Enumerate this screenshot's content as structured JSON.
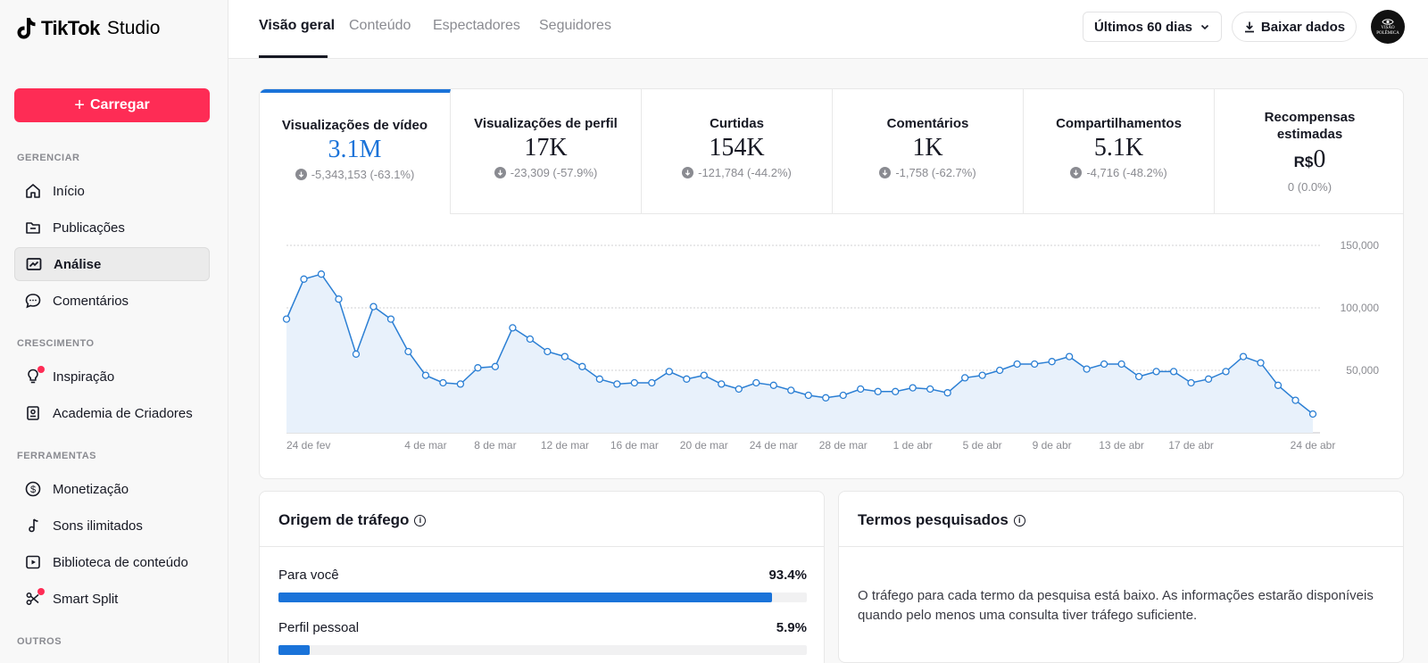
{
  "app": {
    "brand": "TikTok",
    "brand_sub": "Studio"
  },
  "sidebar": {
    "upload_label": "Carregar",
    "sections": [
      {
        "title": "GERENCIAR",
        "items": [
          {
            "label": "Início",
            "icon": "home-icon"
          },
          {
            "label": "Publicações",
            "icon": "folder-icon"
          },
          {
            "label": "Análise",
            "icon": "analytics-icon",
            "active": true
          },
          {
            "label": "Comentários",
            "icon": "comment-icon"
          }
        ]
      },
      {
        "title": "CRESCIMENTO",
        "items": [
          {
            "label": "Inspiração",
            "icon": "lightbulb-icon",
            "badge": true
          },
          {
            "label": "Academia de Criadores",
            "icon": "book-icon"
          }
        ]
      },
      {
        "title": "FERRAMENTAS",
        "items": [
          {
            "label": "Monetização",
            "icon": "dollar-icon"
          },
          {
            "label": "Sons ilimitados",
            "icon": "music-icon"
          },
          {
            "label": "Biblioteca de conteúdo",
            "icon": "play-icon"
          },
          {
            "label": "Smart Split",
            "icon": "scissors-icon",
            "badge": true
          }
        ]
      },
      {
        "title": "OUTROS",
        "items": []
      }
    ]
  },
  "header": {
    "tabs": [
      "Visão geral",
      "Conteúdo",
      "Espectadores",
      "Seguidores"
    ],
    "active_tab": 0,
    "period": "Últimos 60 dias",
    "download_label": "Baixar dados",
    "avatar_text": [
      "VISÃO",
      "POLÊMICA"
    ]
  },
  "metrics": [
    {
      "label": "Visualizações de vídeo",
      "value": "3.1M",
      "change": "-5,343,153 (-63.1%)"
    },
    {
      "label": "Visualizações de perfil",
      "value": "17K",
      "change": "-23,309 (-57.9%)"
    },
    {
      "label": "Curtidas",
      "value": "154K",
      "change": "-121,784 (-44.2%)"
    },
    {
      "label": "Comentários",
      "value": "1K",
      "change": "-1,758 (-62.7%)"
    },
    {
      "label": "Compartilhamentos",
      "value": "5.1K",
      "change": "-4,716 (-48.2%)"
    },
    {
      "label": "Recompensas estimadas",
      "currency": "R$",
      "value": "0",
      "change": "0 (0.0%)"
    }
  ],
  "chart_data": {
    "type": "area",
    "ylim": [
      0,
      150000
    ],
    "y_ticks": [
      150000,
      100000,
      50000
    ],
    "y_tick_labels": [
      "150,000",
      "100,000",
      "50,000"
    ],
    "x_tick_labels": [
      {
        "label": "24 de fev",
        "index": 0
      },
      {
        "label": "4 de mar",
        "index": 8
      },
      {
        "label": "8 de mar",
        "index": 12
      },
      {
        "label": "12 de mar",
        "index": 16
      },
      {
        "label": "16 de mar",
        "index": 20
      },
      {
        "label": "20 de mar",
        "index": 24
      },
      {
        "label": "24 de mar",
        "index": 28
      },
      {
        "label": "28 de mar",
        "index": 32
      },
      {
        "label": "1 de abr",
        "index": 36
      },
      {
        "label": "5 de abr",
        "index": 40
      },
      {
        "label": "9 de abr",
        "index": 44
      },
      {
        "label": "13 de abr",
        "index": 48
      },
      {
        "label": "17 de abr",
        "index": 52
      },
      {
        "label": "24 de abr",
        "index": 59
      }
    ],
    "values": [
      91000,
      123000,
      127000,
      107000,
      63000,
      101000,
      91000,
      65000,
      46000,
      40000,
      39000,
      52000,
      53000,
      84000,
      75000,
      65000,
      61000,
      53000,
      43000,
      39000,
      40000,
      40000,
      49000,
      43000,
      46000,
      39000,
      35000,
      40000,
      38000,
      34000,
      30000,
      28000,
      30000,
      35000,
      33000,
      33000,
      36000,
      35000,
      32000,
      44000,
      46000,
      50000,
      55000,
      55000,
      57000,
      61000,
      51000,
      55000,
      55000,
      45000,
      49000,
      49000,
      40000,
      43000,
      49000,
      61000,
      56000,
      38000,
      26000,
      15000
    ],
    "line_color": "#2b7fd4",
    "fill_color": "#e8f1fb"
  },
  "traffic": {
    "title": "Origem de tráfego",
    "rows": [
      {
        "label": "Para você",
        "pct_label": "93.4%",
        "pct": 93.4
      },
      {
        "label": "Perfil pessoal",
        "pct_label": "5.9%",
        "pct": 5.9
      }
    ]
  },
  "search_terms": {
    "title": "Termos pesquisados",
    "message": "O tráfego para cada termo da pesquisa está baixo. As informações estarão disponíveis quando pelo menos uma consulta tiver tráfego suficiente."
  },
  "colors": {
    "accent": "#fe2c55",
    "blue": "#1a73d9"
  }
}
